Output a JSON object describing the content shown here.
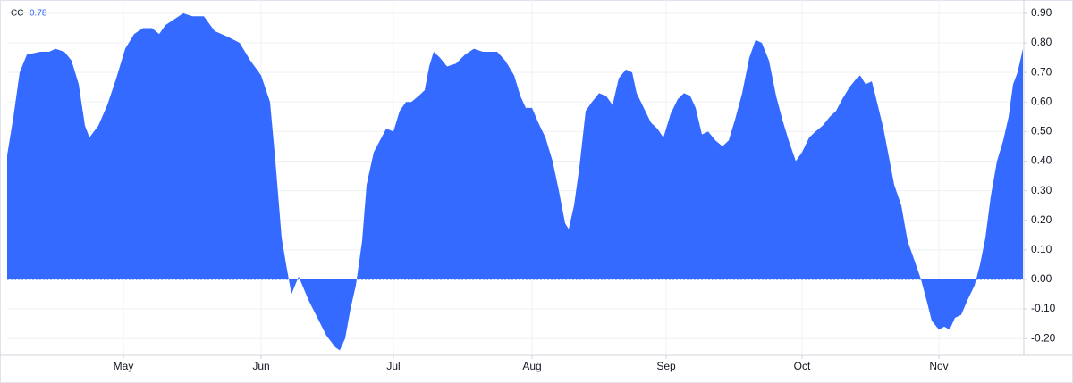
{
  "chart_data": {
    "type": "area",
    "series": [
      {
        "name": "CC",
        "color": "#2962ff",
        "x": [
          8,
          15,
          22,
          30,
          45,
          55,
          62,
          72,
          80,
          88,
          95,
          100,
          110,
          120,
          130,
          140,
          150,
          160,
          170,
          178,
          185,
          195,
          205,
          215,
          228,
          240,
          255,
          268,
          280,
          292,
          302,
          308,
          315,
          320,
          326,
          334,
          345,
          355,
          365,
          375,
          380,
          386,
          392,
          398,
          405,
          410,
          418,
          425,
          432,
          440,
          447,
          454,
          460,
          468,
          475,
          480,
          485,
          492,
          500,
          510,
          520,
          530,
          540,
          548,
          556,
          565,
          575,
          582,
          588,
          595,
          602,
          610,
          618,
          625,
          632,
          636,
          642,
          648,
          655,
          662,
          670,
          678,
          685,
          692,
          700,
          707,
          712,
          720,
          728,
          735,
          742,
          750,
          758,
          765,
          772,
          778,
          785,
          792,
          800,
          808,
          815,
          822,
          830,
          838,
          845,
          852,
          860,
          868,
          875,
          882,
          890,
          897,
          905,
          912,
          920,
          928,
          935,
          942,
          950,
          958,
          962,
          968,
          975,
          980,
          988,
          995,
          1000,
          1008,
          1015,
          1022,
          1030,
          1037,
          1042,
          1050,
          1056,
          1062,
          1068,
          1075,
          1082,
          1090,
          1096,
          1102,
          1108,
          1115,
          1122,
          1128,
          1133,
          1138,
          1144
        ],
        "values": [
          0.42,
          0.55,
          0.7,
          0.76,
          0.77,
          0.77,
          0.78,
          0.77,
          0.74,
          0.66,
          0.52,
          0.48,
          0.52,
          0.59,
          0.68,
          0.78,
          0.83,
          0.85,
          0.85,
          0.83,
          0.86,
          0.88,
          0.9,
          0.89,
          0.89,
          0.84,
          0.82,
          0.8,
          0.74,
          0.69,
          0.6,
          0.4,
          0.14,
          0.05,
          -0.05,
          0.01,
          -0.07,
          -0.13,
          -0.19,
          -0.23,
          -0.24,
          -0.2,
          -0.1,
          -0.02,
          0.13,
          0.32,
          0.43,
          0.47,
          0.51,
          0.5,
          0.57,
          0.6,
          0.6,
          0.62,
          0.64,
          0.72,
          0.77,
          0.75,
          0.72,
          0.73,
          0.76,
          0.78,
          0.77,
          0.77,
          0.77,
          0.74,
          0.69,
          0.62,
          0.58,
          0.58,
          0.53,
          0.48,
          0.4,
          0.3,
          0.19,
          0.17,
          0.25,
          0.38,
          0.57,
          0.6,
          0.63,
          0.62,
          0.59,
          0.68,
          0.71,
          0.7,
          0.63,
          0.58,
          0.53,
          0.51,
          0.48,
          0.56,
          0.61,
          0.63,
          0.62,
          0.58,
          0.49,
          0.5,
          0.47,
          0.45,
          0.47,
          0.54,
          0.63,
          0.75,
          0.81,
          0.8,
          0.74,
          0.62,
          0.54,
          0.47,
          0.4,
          0.43,
          0.48,
          0.5,
          0.52,
          0.55,
          0.57,
          0.61,
          0.65,
          0.68,
          0.69,
          0.66,
          0.67,
          0.61,
          0.51,
          0.4,
          0.32,
          0.25,
          0.13,
          0.07,
          0.0,
          -0.08,
          -0.14,
          -0.17,
          -0.16,
          -0.17,
          -0.13,
          -0.12,
          -0.07,
          -0.02,
          0.05,
          0.14,
          0.28,
          0.4,
          0.47,
          0.55,
          0.66,
          0.7,
          0.78
        ]
      }
    ],
    "xlim": [
      8,
      1145
    ],
    "xticks": [
      {
        "value": 138,
        "label": "May"
      },
      {
        "value": 292,
        "label": "Jun"
      },
      {
        "value": 440,
        "label": "Jul"
      },
      {
        "value": 595,
        "label": "Aug"
      },
      {
        "value": 745,
        "label": "Sep"
      },
      {
        "value": 897,
        "label": "Oct"
      },
      {
        "value": 1050,
        "label": "Nov"
      }
    ],
    "ylim": [
      -0.257,
      0.93
    ],
    "yticks": [
      {
        "value": 0.9,
        "label": "0.90"
      },
      {
        "value": 0.8,
        "label": "0.80"
      },
      {
        "value": 0.7,
        "label": "0.70"
      },
      {
        "value": 0.6,
        "label": "0.60"
      },
      {
        "value": 0.5,
        "label": "0.50"
      },
      {
        "value": 0.4,
        "label": "0.40"
      },
      {
        "value": 0.3,
        "label": "0.30"
      },
      {
        "value": 0.2,
        "label": "0.20"
      },
      {
        "value": 0.1,
        "label": "0.10"
      },
      {
        "value": 0,
        "label": "0.00"
      },
      {
        "value": -0.1,
        "label": "-0.10"
      },
      {
        "value": -0.2,
        "label": "-0.20"
      }
    ],
    "grid": true
  }
}
